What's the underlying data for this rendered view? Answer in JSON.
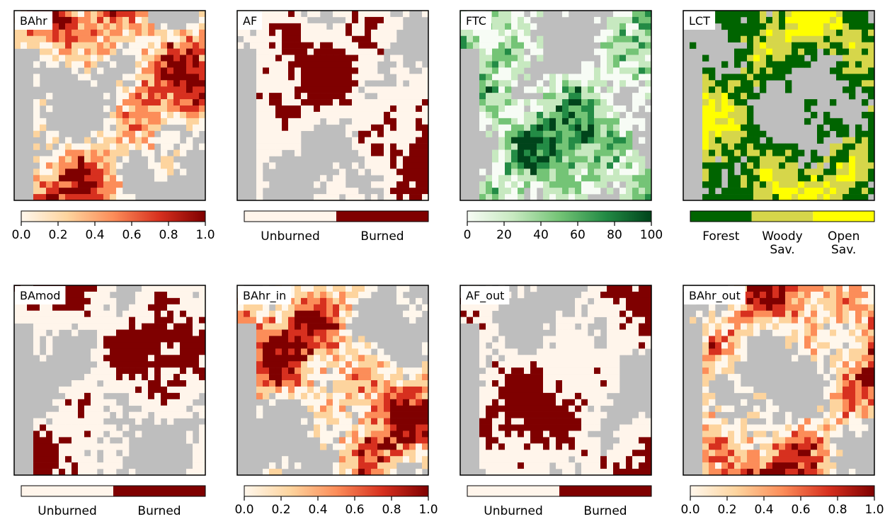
{
  "panels": [
    {
      "label": "BAhr",
      "colorbar": {
        "kind": "continuous",
        "colors": [
          "#fff7ec",
          "#fdd49e",
          "#fc8d59",
          "#d7301f",
          "#7f0000"
        ],
        "lim": [
          0,
          1
        ],
        "ticks": [
          {
            "value": 0,
            "label": "0.0"
          },
          0.2,
          0.4,
          0.6,
          0.8,
          {
            "value": 1,
            "label": "1.0"
          }
        ]
      }
    },
    {
      "label": "AF",
      "colorbar": {
        "kind": "categorical",
        "colors": [
          "#fff5eb",
          "#7f0000"
        ],
        "labels": [
          [
            "Unburned"
          ],
          [
            "Burned"
          ]
        ]
      }
    },
    {
      "label": "FTC",
      "colorbar": {
        "kind": "continuous",
        "colors": [
          "#f7fcf5",
          "#c7e9c0",
          "#74c476",
          "#238b45",
          "#00441b"
        ],
        "lim": [
          0,
          100
        ],
        "ticks": [
          0,
          20,
          40,
          60,
          80,
          100
        ]
      }
    },
    {
      "label": "LCT",
      "colorbar": {
        "kind": "categorical",
        "colors": [
          "#006400",
          "#d6d64a",
          "#ffff00"
        ],
        "labels": [
          [
            "Forest"
          ],
          [
            "Woody",
            "Sav."
          ],
          [
            "Open",
            "Sav."
          ]
        ]
      }
    },
    {
      "label": "BAmod",
      "colorbar": {
        "kind": "categorical",
        "colors": [
          "#fff5eb",
          "#7f0000"
        ],
        "labels": [
          [
            "Unburned"
          ],
          [
            "Burned"
          ]
        ]
      }
    },
    {
      "label": "BAhr_in",
      "colorbar": {
        "kind": "continuous",
        "colors": [
          "#fff7ec",
          "#fdd49e",
          "#fc8d59",
          "#d7301f",
          "#7f0000"
        ],
        "lim": [
          0,
          1
        ],
        "ticks": [
          {
            "value": 0,
            "label": "0.0"
          },
          0.2,
          0.4,
          0.6,
          0.8,
          {
            "value": 1,
            "label": "1.0"
          }
        ]
      }
    },
    {
      "label": "AF_out",
      "colorbar": {
        "kind": "categorical",
        "colors": [
          "#fff5eb",
          "#7f0000"
        ],
        "labels": [
          [
            "Unburned"
          ],
          [
            "Burned"
          ]
        ]
      }
    },
    {
      "label": "BAhr_out",
      "colorbar": {
        "kind": "continuous",
        "colors": [
          "#fff7ec",
          "#fdd49e",
          "#fc8d59",
          "#d7301f",
          "#7f0000"
        ],
        "lim": [
          0,
          1
        ],
        "ticks": [
          {
            "value": 0,
            "label": "0.0"
          },
          0.2,
          0.4,
          0.6,
          0.8,
          {
            "value": 1,
            "label": "1.0"
          }
        ]
      }
    }
  ]
}
